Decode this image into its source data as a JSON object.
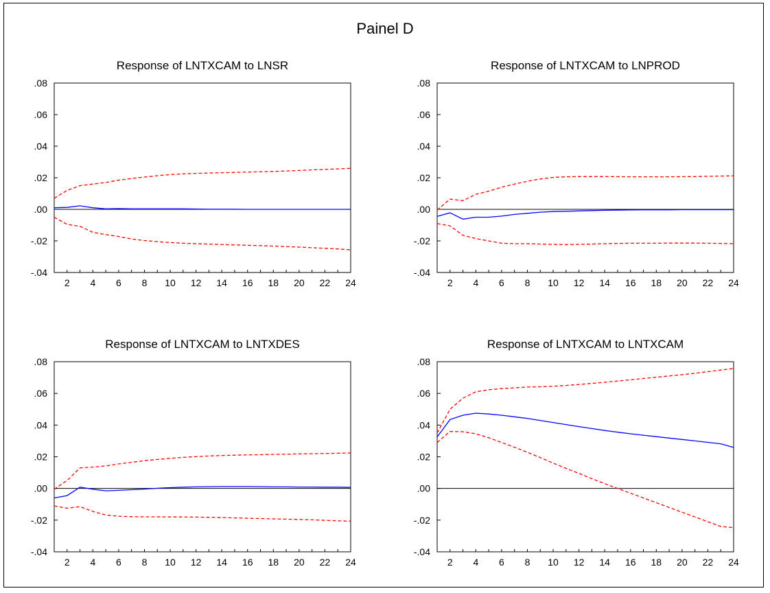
{
  "figure_title": "Painel D",
  "colors": {
    "response": "#0000ff",
    "bands": "#ff0000",
    "zero_line": "#000000",
    "frame": "#000000"
  },
  "chart_data": [
    {
      "type": "line",
      "title": "Response of LNTXCAM to LNSR",
      "x": [
        1,
        2,
        3,
        4,
        5,
        6,
        7,
        8,
        9,
        10,
        11,
        12,
        13,
        14,
        15,
        16,
        17,
        18,
        19,
        20,
        21,
        22,
        23,
        24
      ],
      "ylim": [
        -0.04,
        0.08
      ],
      "yticks": [
        -0.04,
        -0.02,
        0.0,
        0.02,
        0.04,
        0.06,
        0.08
      ],
      "yticklabels": [
        "-.04",
        "-.02",
        ".00",
        ".02",
        ".04",
        ".06",
        ".08"
      ],
      "xticks": [
        2,
        4,
        6,
        8,
        10,
        12,
        14,
        16,
        18,
        20,
        22,
        24
      ],
      "xticklabels": [
        "2",
        "4",
        "6",
        "8",
        "10",
        "12",
        "14",
        "16",
        "18",
        "20",
        "22",
        "24"
      ],
      "zero_line": true,
      "series": [
        {
          "role": "response",
          "style": "solid",
          "values": [
            0.001,
            0.0012,
            0.0022,
            0.001,
            0.0003,
            0.0005,
            0.0003,
            0.0003,
            0.0003,
            0.0003,
            0.0003,
            0.0002,
            0.0001,
            0.0001,
            0.0001,
            0,
            0,
            0,
            0,
            0,
            0,
            0,
            0,
            0
          ]
        },
        {
          "role": "upper",
          "style": "dashed",
          "values": [
            0.007,
            0.012,
            0.015,
            0.016,
            0.017,
            0.0185,
            0.0195,
            0.0205,
            0.0213,
            0.022,
            0.0225,
            0.0228,
            0.023,
            0.0232,
            0.0234,
            0.0236,
            0.0238,
            0.024,
            0.0243,
            0.0246,
            0.025,
            0.0253,
            0.0256,
            0.026
          ]
        },
        {
          "role": "lower",
          "style": "dashed",
          "values": [
            -0.005,
            -0.0095,
            -0.0108,
            -0.0145,
            -0.016,
            -0.0172,
            -0.0188,
            -0.0198,
            -0.0205,
            -0.021,
            -0.0215,
            -0.0218,
            -0.022,
            -0.0223,
            -0.0225,
            -0.0228,
            -0.023,
            -0.0233,
            -0.0236,
            -0.0239,
            -0.0243,
            -0.0247,
            -0.0251,
            -0.0257
          ]
        }
      ]
    },
    {
      "type": "line",
      "title": "Response of LNTXCAM to LNPROD",
      "x": [
        1,
        2,
        3,
        4,
        5,
        6,
        7,
        8,
        9,
        10,
        11,
        12,
        13,
        14,
        15,
        16,
        17,
        18,
        19,
        20,
        21,
        22,
        23,
        24
      ],
      "ylim": [
        -0.04,
        0.08
      ],
      "yticks": [
        -0.04,
        -0.02,
        0.0,
        0.02,
        0.04,
        0.06,
        0.08
      ],
      "yticklabels": [
        "-.04",
        "-.02",
        ".00",
        ".02",
        ".04",
        ".06",
        ".08"
      ],
      "xticks": [
        2,
        4,
        6,
        8,
        10,
        12,
        14,
        16,
        18,
        20,
        22,
        24
      ],
      "xticklabels": [
        "2",
        "4",
        "6",
        "8",
        "10",
        "12",
        "14",
        "16",
        "18",
        "20",
        "22",
        "24"
      ],
      "zero_line": true,
      "series": [
        {
          "role": "response",
          "style": "solid",
          "values": [
            -0.0045,
            -0.0022,
            -0.0062,
            -0.005,
            -0.005,
            -0.0043,
            -0.0032,
            -0.0025,
            -0.0018,
            -0.0014,
            -0.0012,
            -0.001,
            -0.0008,
            -0.0006,
            -0.0005,
            -0.0004,
            -0.0003,
            -0.0003,
            -0.0003,
            -0.0002,
            -0.0002,
            -0.0002,
            -0.0002,
            -0.0002
          ]
        },
        {
          "role": "upper",
          "style": "dashed",
          "values": [
            -0.0005,
            0.0065,
            0.0055,
            0.0095,
            0.0115,
            0.014,
            0.016,
            0.0178,
            0.0192,
            0.0202,
            0.0206,
            0.0208,
            0.0208,
            0.0208,
            0.0207,
            0.0206,
            0.0206,
            0.0206,
            0.0206,
            0.0207,
            0.0208,
            0.021,
            0.0211,
            0.0212
          ]
        },
        {
          "role": "lower",
          "style": "dashed",
          "values": [
            -0.009,
            -0.0105,
            -0.0165,
            -0.0185,
            -0.02,
            -0.0215,
            -0.0218,
            -0.0218,
            -0.022,
            -0.0222,
            -0.0223,
            -0.0222,
            -0.022,
            -0.0218,
            -0.0216,
            -0.0215,
            -0.0215,
            -0.0215,
            -0.0214,
            -0.0214,
            -0.0214,
            -0.0215,
            -0.0216,
            -0.0218
          ]
        }
      ]
    },
    {
      "type": "line",
      "title": "Response of LNTXCAM to LNTXDES",
      "x": [
        1,
        2,
        3,
        4,
        5,
        6,
        7,
        8,
        9,
        10,
        11,
        12,
        13,
        14,
        15,
        16,
        17,
        18,
        19,
        20,
        21,
        22,
        23,
        24
      ],
      "ylim": [
        -0.04,
        0.08
      ],
      "yticks": [
        -0.04,
        -0.02,
        0.0,
        0.02,
        0.04,
        0.06,
        0.08
      ],
      "yticklabels": [
        "-.04",
        "-.02",
        ".00",
        ".02",
        ".04",
        ".06",
        ".08"
      ],
      "xticks": [
        2,
        4,
        6,
        8,
        10,
        12,
        14,
        16,
        18,
        20,
        22,
        24
      ],
      "xticklabels": [
        "2",
        "4",
        "6",
        "8",
        "10",
        "12",
        "14",
        "16",
        "18",
        "20",
        "22",
        "24"
      ],
      "zero_line": true,
      "series": [
        {
          "role": "response",
          "style": "solid",
          "values": [
            -0.006,
            -0.0045,
            0.0008,
            -0.0005,
            -0.0015,
            -0.0012,
            -0.0008,
            -0.0004,
            0.0001,
            0.0005,
            0.0008,
            0.001,
            0.0011,
            0.0012,
            0.0012,
            0.0012,
            0.0011,
            0.001,
            0.001,
            0.0009,
            0.0009,
            0.0008,
            0.0008,
            0.0007
          ]
        },
        {
          "role": "upper",
          "style": "dashed",
          "values": [
            -0.0005,
            0.005,
            0.013,
            0.0135,
            0.0142,
            0.0155,
            0.0165,
            0.0175,
            0.0183,
            0.019,
            0.0196,
            0.0201,
            0.0205,
            0.0208,
            0.021,
            0.0212,
            0.0213,
            0.0215,
            0.0216,
            0.0218,
            0.0219,
            0.0221,
            0.0222,
            0.0224
          ]
        },
        {
          "role": "lower",
          "style": "dashed",
          "values": [
            -0.011,
            -0.0125,
            -0.0115,
            -0.0145,
            -0.0168,
            -0.0175,
            -0.0178,
            -0.0179,
            -0.0179,
            -0.018,
            -0.018,
            -0.0181,
            -0.0182,
            -0.0184,
            -0.0186,
            -0.0188,
            -0.019,
            -0.0192,
            -0.0194,
            -0.0196,
            -0.0198,
            -0.0201,
            -0.0204,
            -0.0207
          ]
        }
      ]
    },
    {
      "type": "line",
      "title": "Response of LNTXCAM to LNTXCAM",
      "x": [
        1,
        2,
        3,
        4,
        5,
        6,
        7,
        8,
        9,
        10,
        11,
        12,
        13,
        14,
        15,
        16,
        17,
        18,
        19,
        20,
        21,
        22,
        23,
        24
      ],
      "ylim": [
        -0.04,
        0.08
      ],
      "yticks": [
        -0.04,
        -0.02,
        0.0,
        0.02,
        0.04,
        0.06,
        0.08
      ],
      "yticklabels": [
        "-.04",
        "-.02",
        ".00",
        ".02",
        ".04",
        ".06",
        ".08"
      ],
      "xticks": [
        2,
        4,
        6,
        8,
        10,
        12,
        14,
        16,
        18,
        20,
        22,
        24
      ],
      "xticklabels": [
        "2",
        "4",
        "6",
        "8",
        "10",
        "12",
        "14",
        "16",
        "18",
        "20",
        "22",
        "24"
      ],
      "zero_line": true,
      "series": [
        {
          "role": "response",
          "style": "solid",
          "values": [
            0.0325,
            0.0435,
            0.0462,
            0.0475,
            0.047,
            0.0462,
            0.0452,
            0.0442,
            0.0429,
            0.0416,
            0.0403,
            0.039,
            0.0378,
            0.0366,
            0.0355,
            0.0345,
            0.0336,
            0.0327,
            0.0318,
            0.0309,
            0.03,
            0.0291,
            0.0282,
            0.0259
          ]
        },
        {
          "role": "upper",
          "style": "dashed",
          "values": [
            0.035,
            0.05,
            0.057,
            0.061,
            0.0623,
            0.063,
            0.0635,
            0.064,
            0.0642,
            0.0645,
            0.065,
            0.0656,
            0.0663,
            0.067,
            0.0678,
            0.0686,
            0.0694,
            0.0702,
            0.071,
            0.0718,
            0.0727,
            0.0737,
            0.0747,
            0.0757
          ]
        },
        {
          "role": "lower",
          "style": "dashed",
          "values": [
            0.029,
            0.036,
            0.0358,
            0.0345,
            0.032,
            0.029,
            0.026,
            0.0228,
            0.0195,
            0.016,
            0.0127,
            0.0095,
            0.0062,
            0.003,
            0.0,
            -0.003,
            -0.006,
            -0.009,
            -0.012,
            -0.015,
            -0.018,
            -0.021,
            -0.024,
            -0.0247
          ]
        }
      ]
    }
  ]
}
